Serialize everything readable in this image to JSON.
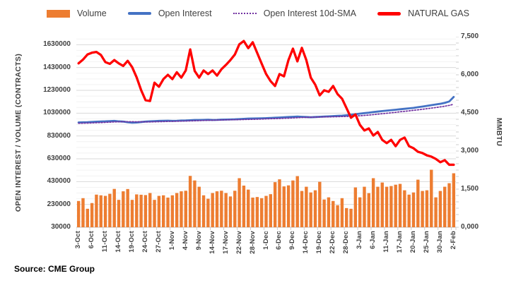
{
  "source_note": "Source: CME Group",
  "colors": {
    "volume_orange": "#ED7D31",
    "open_interest_blue": "#4472C4",
    "sma_purple": "#7030A0",
    "natural_gas_red": "#FF0000",
    "grid_major": "#D9D9D9",
    "grid_minor": "#F2F2F2",
    "axis_line": "#BFBFBF",
    "text": "#3F3F3F"
  },
  "legend": [
    {
      "label": "Volume",
      "swatch": "bar",
      "color": "#ED7D31"
    },
    {
      "label": "Open Interest",
      "swatch": "line",
      "color": "#4472C4"
    },
    {
      "label": "Open Interest 10d-SMA",
      "swatch": "dotted-line",
      "color": "#7030A0"
    },
    {
      "label": "NATURAL GAS",
      "swatch": "thick-line",
      "color": "#FF0000"
    }
  ],
  "chart_data": {
    "type": "combo",
    "title": "",
    "x_label_every": 3,
    "x": [
      "3-Oct",
      "4-Oct",
      "5-Oct",
      "6-Oct",
      "7-Oct",
      "10-Oct",
      "11-Oct",
      "12-Oct",
      "13-Oct",
      "14-Oct",
      "17-Oct",
      "18-Oct",
      "19-Oct",
      "20-Oct",
      "21-Oct",
      "24-Oct",
      "25-Oct",
      "26-Oct",
      "27-Oct",
      "28-Oct",
      "31-Oct",
      "1-Nov",
      "2-Nov",
      "3-Nov",
      "4-Nov",
      "7-Nov",
      "8-Nov",
      "9-Nov",
      "10-Nov",
      "11-Nov",
      "14-Nov",
      "15-Nov",
      "16-Nov",
      "17-Nov",
      "18-Nov",
      "21-Nov",
      "22-Nov",
      "23-Nov",
      "25-Nov",
      "28-Nov",
      "29-Nov",
      "30-Nov",
      "1-Dec",
      "2-Dec",
      "5-Dec",
      "6-Dec",
      "7-Dec",
      "8-Dec",
      "9-Dec",
      "12-Dec",
      "13-Dec",
      "14-Dec",
      "15-Dec",
      "16-Dec",
      "19-Dec",
      "20-Dec",
      "21-Dec",
      "22-Dec",
      "23-Dec",
      "27-Dec",
      "28-Dec",
      "29-Dec",
      "30-Dec",
      "3-Jan",
      "4-Jan",
      "5-Jan",
      "6-Jan",
      "9-Jan",
      "10-Jan",
      "11-Jan",
      "12-Jan",
      "13-Jan",
      "17-Jan",
      "18-Jan",
      "19-Jan",
      "20-Jan",
      "23-Jan",
      "24-Jan",
      "25-Jan",
      "26-Jan",
      "27-Jan",
      "30-Jan",
      "31-Jan",
      "1-Feb",
      "2-Feb"
    ],
    "left_axis": {
      "title": "OPEN INTEREST / VOLUME (CONTRACTS)",
      "min": 30000,
      "max": 1700000,
      "major_unit": 200000,
      "minor_unit": 50000,
      "tick_labels": [
        "1630000",
        "1430000",
        "1230000",
        "1030000",
        "830000",
        "630000",
        "430000",
        "230000",
        "30000"
      ],
      "grid": true
    },
    "right_axis": {
      "title": "MMBTU",
      "min": 0,
      "max": 7.5,
      "major_unit": 1.5,
      "minor_unit": 0.25,
      "tick_labels": [
        "7,500",
        "6,000",
        "4,500",
        "3,000",
        "1,500",
        "0,000"
      ],
      "grid": false
    },
    "series": [
      {
        "name": "Volume",
        "type": "bar",
        "axis": "left",
        "color": "#ED7D31",
        "values": [
          260000,
          285000,
          192000,
          242000,
          316000,
          310000,
          305000,
          323000,
          366000,
          270000,
          345000,
          365000,
          270000,
          318000,
          315000,
          312000,
          330000,
          270000,
          305000,
          310000,
          290000,
          310000,
          330000,
          345000,
          350000,
          480000,
          440000,
          385000,
          310000,
          280000,
          330000,
          345000,
          350000,
          330000,
          300000,
          350000,
          460000,
          395000,
          360000,
          290000,
          295000,
          285000,
          305000,
          320000,
          425000,
          450000,
          388000,
          397000,
          440000,
          478000,
          348000,
          385000,
          335000,
          354000,
          428000,
          273000,
          292000,
          260000,
          223000,
          285000,
          198000,
          192000,
          379000,
          292000,
          385000,
          329000,
          460000,
          385000,
          422000,
          385000,
          391000,
          403000,
          410000,
          354000,
          316000,
          335000,
          447000,
          348000,
          354000,
          534000,
          292000,
          348000,
          385000,
          416000,
          503000
        ]
      },
      {
        "name": "Open Interest",
        "type": "line",
        "axis": "left",
        "color": "#4472C4",
        "values": [
          948000,
          950000,
          951000,
          953000,
          955000,
          957000,
          958000,
          960000,
          962000,
          958000,
          956000,
          950000,
          946000,
          948000,
          952000,
          956000,
          958000,
          960000,
          962000,
          963000,
          964000,
          962000,
          963000,
          965000,
          966000,
          968000,
          970000,
          970000,
          971000,
          972000,
          970000,
          971000,
          973000,
          974000,
          975000,
          976000,
          978000,
          980000,
          982000,
          983000,
          984000,
          985000,
          986000,
          988000,
          990000,
          992000,
          994000,
          996000,
          998000,
          1000000,
          998000,
          996000,
          994000,
          996000,
          998000,
          1000000,
          1002000,
          1004000,
          1006000,
          1008000,
          1012000,
          1016000,
          1020000,
          1026000,
          1030000,
          1034000,
          1040000,
          1044000,
          1048000,
          1052000,
          1056000,
          1060000,
          1064000,
          1068000,
          1072000,
          1076000,
          1082000,
          1088000,
          1094000,
          1100000,
          1106000,
          1112000,
          1120000,
          1132000,
          1172000
        ]
      },
      {
        "name": "Open Interest 10d-SMA",
        "type": "line",
        "style": "dotted",
        "axis": "left",
        "color": "#7030A0",
        "values": [
          941000,
          942000,
          943000,
          944000,
          946000,
          947000,
          949000,
          951000,
          953000,
          954000,
          955000,
          955000,
          955000,
          954000,
          954000,
          953000,
          953000,
          954000,
          955000,
          956000,
          957000,
          958000,
          959000,
          960000,
          961000,
          962000,
          963000,
          964000,
          966000,
          967000,
          968000,
          969000,
          970000,
          971000,
          972000,
          972000,
          973000,
          974000,
          975000,
          976000,
          977000,
          978000,
          980000,
          981000,
          982000,
          983000,
          985000,
          986000,
          988000,
          990000,
          992000,
          993000,
          994000,
          995000,
          996000,
          997000,
          997000,
          998000,
          999000,
          1000000,
          1001000,
          1003000,
          1005000,
          1007000,
          1010000,
          1013000,
          1017000,
          1021000,
          1025000,
          1029000,
          1033000,
          1037000,
          1042000,
          1046000,
          1050000,
          1055000,
          1059000,
          1064000,
          1069000,
          1074000,
          1079000,
          1085000,
          1091000,
          1098000,
          1108000
        ]
      },
      {
        "name": "NATURAL GAS",
        "type": "line",
        "axis": "right",
        "color": "#FF0000",
        "values": [
          6.45,
          6.6,
          6.8,
          6.87,
          6.9,
          6.78,
          6.5,
          6.43,
          6.58,
          6.45,
          6.35,
          6.55,
          6.3,
          5.9,
          5.4,
          5.0,
          4.97,
          5.69,
          5.53,
          5.83,
          6.0,
          5.83,
          6.1,
          5.89,
          6.17,
          7.0,
          6.15,
          5.89,
          6.17,
          6.03,
          6.17,
          5.97,
          6.22,
          6.39,
          6.58,
          6.8,
          7.2,
          7.33,
          7.05,
          7.28,
          6.86,
          6.44,
          6.03,
          5.75,
          5.56,
          6.03,
          5.94,
          6.58,
          7.03,
          6.53,
          7.06,
          6.58,
          5.89,
          5.61,
          5.19,
          5.39,
          5.33,
          5.56,
          5.24,
          5.06,
          4.69,
          4.31,
          4.44,
          4.03,
          3.81,
          3.89,
          3.61,
          3.75,
          3.44,
          3.31,
          3.44,
          3.19,
          3.44,
          3.53,
          3.19,
          3.11,
          2.97,
          2.92,
          2.83,
          2.78,
          2.69,
          2.56,
          2.64,
          2.46,
          2.46
        ]
      }
    ]
  }
}
